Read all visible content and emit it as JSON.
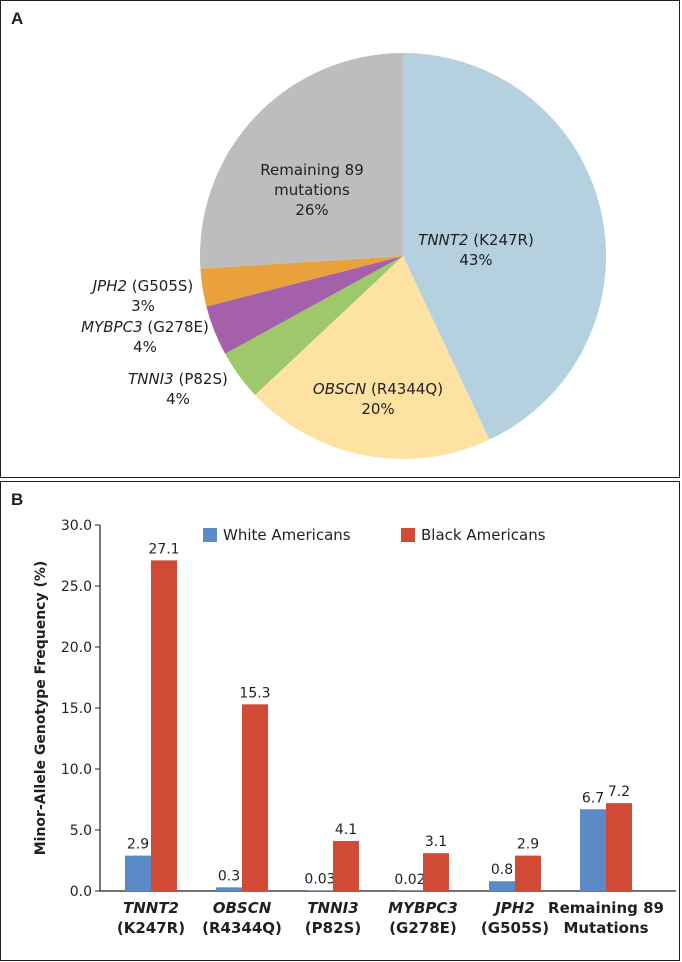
{
  "colors": {
    "tnnt2": "#b5d0de",
    "obscn": "#fde2a2",
    "tnni3": "#9ec96b",
    "mybpc3": "#a460aa",
    "jph2": "#e9a23b",
    "remaining": "#bdbcbf",
    "white": "#5b8ac9",
    "black": "#d04a36",
    "axis": "#231f20"
  },
  "chart_data": [
    {
      "type": "pie",
      "panel_label": "A",
      "slices": [
        {
          "gene": "TNNT2",
          "variant": " (K247R)",
          "percent_label": "43%",
          "value": 43,
          "color": "#b5d0de"
        },
        {
          "gene": "OBSCN",
          "variant": " (R4344Q)",
          "percent_label": "20%",
          "value": 20,
          "color": "#fde2a2"
        },
        {
          "gene": "TNNI3",
          "variant": " (P82S)",
          "percent_label": "4%",
          "value": 4,
          "color": "#9ec96b"
        },
        {
          "gene": "MYBPC3",
          "variant": " (G278E)",
          "percent_label": "4%",
          "value": 4,
          "color": "#a460aa"
        },
        {
          "gene": "JPH2",
          "variant": " (G505S)",
          "percent_label": "3%",
          "value": 3,
          "color": "#e9a23b"
        },
        {
          "gene": "",
          "variant": "Remaining 89",
          "variant2": "mutations",
          "percent_label": "26%",
          "value": 26,
          "color": "#bdbcbf"
        }
      ]
    },
    {
      "type": "bar",
      "panel_label": "B",
      "ylabel": "Minor-Allele Genotype Frequency (%)",
      "ylim": [
        0,
        30
      ],
      "yticks": [
        "0.0",
        "5.0",
        "10.0",
        "15.0",
        "20.0",
        "25.0",
        "30.0"
      ],
      "categories": [
        {
          "gene": "TNNT2",
          "variant": "(K247R)"
        },
        {
          "gene": "OBSCN",
          "variant": "(R4344Q)"
        },
        {
          "gene": "TNNI3",
          "variant": "(P82S)"
        },
        {
          "gene": "MYBPC3",
          "variant": "(G278E)"
        },
        {
          "gene": "JPH2",
          "variant": "(G505S)"
        },
        {
          "gene": "",
          "variant": "Remaining 89",
          "variant2": "Mutations"
        }
      ],
      "series": [
        {
          "name": "White Americans",
          "color": "#5b8ac9",
          "values": [
            2.9,
            0.3,
            0.03,
            0.02,
            0.8,
            6.7
          ],
          "labels": [
            "2.9",
            "0.3",
            "0.03",
            "0.02",
            "0.8",
            "6.7"
          ]
        },
        {
          "name": "Black Americans",
          "color": "#d04a36",
          "values": [
            27.1,
            15.3,
            4.1,
            3.1,
            2.9,
            7.2
          ],
          "labels": [
            "27.1",
            "15.3",
            "4.1",
            "3.1",
            "2.9",
            "7.2"
          ]
        }
      ],
      "legend_position": "top"
    }
  ]
}
